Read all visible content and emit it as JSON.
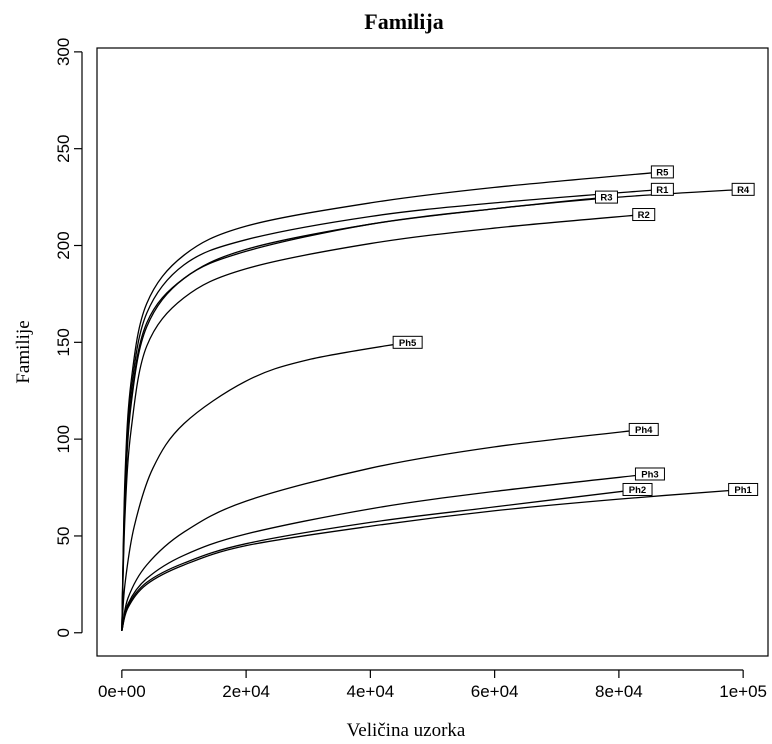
{
  "chart_data": {
    "type": "line",
    "title": "Familija",
    "xlabel": "Veličina uzorka",
    "ylabel": "Familije",
    "xlim": [
      -4000,
      104000
    ],
    "ylim": [
      -12,
      302
    ],
    "xticks": [
      {
        "value": 0,
        "label": "0e+00"
      },
      {
        "value": 20000,
        "label": "2e+04"
      },
      {
        "value": 40000,
        "label": "4e+04"
      },
      {
        "value": 60000,
        "label": "6e+04"
      },
      {
        "value": 80000,
        "label": "8e+04"
      },
      {
        "value": 100000,
        "label": "1e+05"
      }
    ],
    "yticks": [
      {
        "value": 0,
        "label": "0"
      },
      {
        "value": 50,
        "label": "50"
      },
      {
        "value": 100,
        "label": "100"
      },
      {
        "value": 150,
        "label": "150"
      },
      {
        "value": 200,
        "label": "200"
      },
      {
        "value": 250,
        "label": "250"
      },
      {
        "value": 300,
        "label": "300"
      }
    ],
    "legend": "none (inline end labels)",
    "grid": false,
    "series": [
      {
        "name": "R5",
        "points": [
          [
            0,
            1
          ],
          [
            500,
            80
          ],
          [
            1500,
            130
          ],
          [
            4000,
            170
          ],
          [
            10000,
            195
          ],
          [
            20000,
            210
          ],
          [
            40000,
            222
          ],
          [
            60000,
            230
          ],
          [
            87000,
            238
          ]
        ]
      },
      {
        "name": "R1",
        "points": [
          [
            0,
            1
          ],
          [
            500,
            75
          ],
          [
            1500,
            125
          ],
          [
            4000,
            165
          ],
          [
            10000,
            190
          ],
          [
            20000,
            203
          ],
          [
            40000,
            215
          ],
          [
            60000,
            222
          ],
          [
            87000,
            229
          ]
        ]
      },
      {
        "name": "R3",
        "points": [
          [
            0,
            1
          ],
          [
            500,
            70
          ],
          [
            1500,
            120
          ],
          [
            4000,
            160
          ],
          [
            10000,
            183
          ],
          [
            20000,
            198
          ],
          [
            40000,
            211
          ],
          [
            60000,
            219
          ],
          [
            78000,
            225
          ]
        ]
      },
      {
        "name": "R4",
        "points": [
          [
            0,
            1
          ],
          [
            500,
            68
          ],
          [
            1500,
            118
          ],
          [
            4000,
            158
          ],
          [
            10000,
            183
          ],
          [
            20000,
            197
          ],
          [
            40000,
            211
          ],
          [
            60000,
            219
          ],
          [
            80000,
            225
          ],
          [
            100000,
            229
          ]
        ]
      },
      {
        "name": "R2",
        "points": [
          [
            0,
            1
          ],
          [
            500,
            60
          ],
          [
            1500,
            105
          ],
          [
            4000,
            148
          ],
          [
            10000,
            173
          ],
          [
            20000,
            188
          ],
          [
            40000,
            201
          ],
          [
            60000,
            209
          ],
          [
            84000,
            216
          ]
        ]
      },
      {
        "name": "Ph5",
        "points": [
          [
            0,
            1
          ],
          [
            500,
            25
          ],
          [
            2000,
            55
          ],
          [
            5000,
            85
          ],
          [
            10000,
            108
          ],
          [
            20000,
            130
          ],
          [
            30000,
            141
          ],
          [
            46000,
            150
          ]
        ]
      },
      {
        "name": "Ph4",
        "points": [
          [
            0,
            1
          ],
          [
            1000,
            18
          ],
          [
            4000,
            35
          ],
          [
            10000,
            52
          ],
          [
            20000,
            68
          ],
          [
            40000,
            85
          ],
          [
            60000,
            96
          ],
          [
            84000,
            105
          ]
        ]
      },
      {
        "name": "Ph3",
        "points": [
          [
            0,
            1
          ],
          [
            1000,
            15
          ],
          [
            4000,
            28
          ],
          [
            10000,
            40
          ],
          [
            20000,
            51
          ],
          [
            40000,
            64
          ],
          [
            60000,
            73
          ],
          [
            85000,
            82
          ]
        ]
      },
      {
        "name": "Ph2",
        "points": [
          [
            0,
            1
          ],
          [
            1000,
            14
          ],
          [
            4000,
            26
          ],
          [
            10000,
            36
          ],
          [
            20000,
            46
          ],
          [
            40000,
            57
          ],
          [
            60000,
            65
          ],
          [
            83000,
            74
          ]
        ]
      },
      {
        "name": "Ph1",
        "points": [
          [
            0,
            1
          ],
          [
            1000,
            13
          ],
          [
            4000,
            25
          ],
          [
            10000,
            35
          ],
          [
            20000,
            45
          ],
          [
            40000,
            55
          ],
          [
            60000,
            63
          ],
          [
            80000,
            69
          ],
          [
            100000,
            74
          ]
        ]
      }
    ]
  }
}
